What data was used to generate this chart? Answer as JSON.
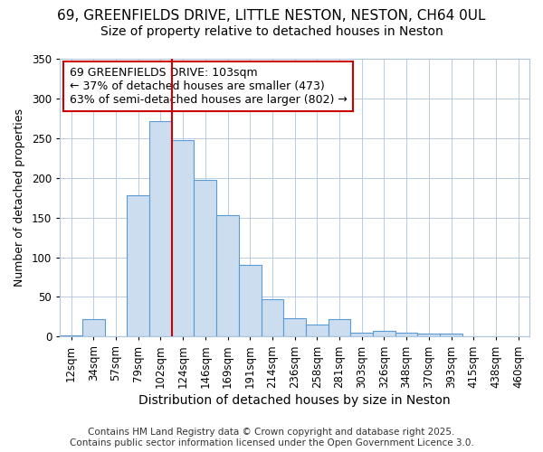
{
  "title1": "69, GREENFIELDS DRIVE, LITTLE NESTON, NESTON, CH64 0UL",
  "title2": "Size of property relative to detached houses in Neston",
  "xlabel": "Distribution of detached houses by size in Neston",
  "ylabel": "Number of detached properties",
  "bin_labels": [
    "12sqm",
    "34sqm",
    "57sqm",
    "79sqm",
    "102sqm",
    "124sqm",
    "146sqm",
    "169sqm",
    "191sqm",
    "214sqm",
    "236sqm",
    "258sqm",
    "281sqm",
    "303sqm",
    "326sqm",
    "348sqm",
    "370sqm",
    "393sqm",
    "415sqm",
    "438sqm",
    "460sqm"
  ],
  "bar_heights": [
    2,
    22,
    0,
    178,
    272,
    248,
    198,
    153,
    90,
    47,
    23,
    15,
    22,
    5,
    7,
    5,
    4,
    4,
    1,
    1,
    0
  ],
  "bar_color": "#ccddf0",
  "bar_edge_color": "#5b9bd5",
  "vline_x": 4.5,
  "vline_color": "#cc0000",
  "annotation_text": "69 GREENFIELDS DRIVE: 103sqm\n← 37% of detached houses are smaller (473)\n63% of semi-detached houses are larger (802) →",
  "annotation_box_color": "#ffffff",
  "annotation_box_edge": "#cc0000",
  "ylim": [
    0,
    350
  ],
  "yticks": [
    0,
    50,
    100,
    150,
    200,
    250,
    300,
    350
  ],
  "bg_color": "#ffffff",
  "plot_bg_color": "#ffffff",
  "footer": "Contains HM Land Registry data © Crown copyright and database right 2025.\nContains public sector information licensed under the Open Government Licence 3.0.",
  "title1_fontsize": 11,
  "title2_fontsize": 10,
  "xlabel_fontsize": 10,
  "ylabel_fontsize": 9,
  "annotation_fontsize": 9,
  "footer_fontsize": 7.5,
  "tick_fontsize": 8.5
}
